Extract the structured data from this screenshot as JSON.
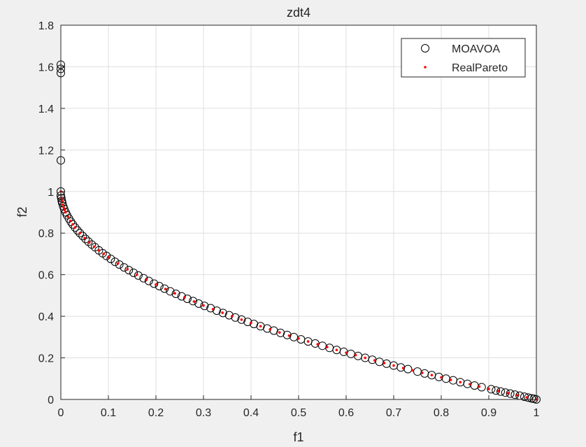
{
  "figure": {
    "background": "#f0f0f0",
    "plot_background": "#ffffff"
  },
  "chart_data": {
    "type": "scatter",
    "title": "zdt4",
    "xlabel": "f1",
    "ylabel": "f2",
    "xlim": [
      0,
      1
    ],
    "ylim": [
      0,
      1.8
    ],
    "xticks": [
      0,
      0.1,
      0.2,
      0.3,
      0.4,
      0.5,
      0.6,
      0.7,
      0.8,
      0.9,
      1
    ],
    "yticks": [
      0,
      0.2,
      0.4,
      0.6,
      0.8,
      1,
      1.2,
      1.4,
      1.6,
      1.8
    ],
    "xtick_labels": [
      "0",
      "0.1",
      "0.2",
      "0.3",
      "0.4",
      "0.5",
      "0.6",
      "0.7",
      "0.8",
      "0.9",
      "1"
    ],
    "ytick_labels": [
      "0",
      "0.2",
      "0.4",
      "0.6",
      "0.8",
      "1",
      "1.2",
      "1.4",
      "1.6",
      "1.8"
    ],
    "grid": true,
    "legend": {
      "placement": "top-right"
    },
    "series": [
      {
        "name": "MOAVOA",
        "marker": "open-circle",
        "color": "#000000",
        "x": [
          0,
          0,
          0,
          0,
          0,
          0,
          0.001,
          0.002,
          0.003,
          0.005,
          0.007,
          0.01,
          0.013,
          0.017,
          0.021,
          0.025,
          0.03,
          0.035,
          0.04,
          0.046,
          0.052,
          0.058,
          0.065,
          0.072,
          0.08,
          0.088,
          0.096,
          0.105,
          0.114,
          0.123,
          0.133,
          0.143,
          0.153,
          0.163,
          0.174,
          0.185,
          0.196,
          0.207,
          0.218,
          0.23,
          0.242,
          0.254,
          0.266,
          0.278,
          0.29,
          0.302,
          0.315,
          0.328,
          0.341,
          0.354,
          0.367,
          0.38,
          0.393,
          0.406,
          0.42,
          0.434,
          0.448,
          0.462,
          0.476,
          0.49,
          0.505,
          0.52,
          0.535,
          0.55,
          0.565,
          0.58,
          0.595,
          0.61,
          0.625,
          0.64,
          0.655,
          0.67,
          0.685,
          0.7,
          0.715,
          0.73,
          0.75,
          0.765,
          0.78,
          0.795,
          0.81,
          0.825,
          0.84,
          0.855,
          0.87,
          0.885,
          0.905,
          0.915,
          0.925,
          0.935,
          0.945,
          0.955,
          0.965,
          0.975,
          0.983,
          0.99,
          0.995,
          1
        ],
        "y": [
          1.61,
          1.59,
          1.57,
          1.15,
          1,
          0.98,
          0.968,
          0.955,
          0.945,
          0.929,
          0.916,
          0.9,
          0.886,
          0.87,
          0.855,
          0.842,
          0.827,
          0.813,
          0.8,
          0.786,
          0.772,
          0.759,
          0.745,
          0.732,
          0.717,
          0.703,
          0.69,
          0.676,
          0.662,
          0.649,
          0.635,
          0.622,
          0.609,
          0.596,
          0.583,
          0.57,
          0.557,
          0.545,
          0.533,
          0.52,
          0.508,
          0.496,
          0.484,
          0.473,
          0.461,
          0.45,
          0.439,
          0.427,
          0.416,
          0.405,
          0.394,
          0.384,
          0.373,
          0.363,
          0.352,
          0.341,
          0.331,
          0.32,
          0.31,
          0.3,
          0.289,
          0.279,
          0.269,
          0.258,
          0.248,
          0.238,
          0.229,
          0.219,
          0.209,
          0.2,
          0.191,
          0.181,
          0.172,
          0.163,
          0.154,
          0.146,
          0.134,
          0.125,
          0.117,
          0.108,
          0.1,
          0.092,
          0.083,
          0.075,
          0.067,
          0.059,
          0.049,
          0.043,
          0.038,
          0.033,
          0.028,
          0.023,
          0.018,
          0.013,
          0.009,
          0.005,
          0.003,
          0
        ]
      },
      {
        "name": "RealPareto",
        "marker": "dot",
        "color": "#ff0000",
        "curve": "f2 = 1 - sqrt(f1)",
        "x": [
          0,
          0.001,
          0.002,
          0.004,
          0.006,
          0.008,
          0.01,
          0.015,
          0.02,
          0.025,
          0.03,
          0.04,
          0.05,
          0.06,
          0.07,
          0.08,
          0.09,
          0.1,
          0.12,
          0.14,
          0.16,
          0.18,
          0.2,
          0.22,
          0.24,
          0.26,
          0.28,
          0.3,
          0.32,
          0.34,
          0.36,
          0.38,
          0.4,
          0.42,
          0.44,
          0.46,
          0.48,
          0.5,
          0.52,
          0.54,
          0.56,
          0.58,
          0.6,
          0.62,
          0.64,
          0.66,
          0.68,
          0.7,
          0.72,
          0.74,
          0.76,
          0.78,
          0.8,
          0.82,
          0.84,
          0.86,
          0.88,
          0.9,
          0.92,
          0.94,
          0.96,
          0.98,
          1
        ],
        "y": [
          1,
          0.968,
          0.955,
          0.937,
          0.923,
          0.911,
          0.9,
          0.878,
          0.859,
          0.842,
          0.827,
          0.8,
          0.776,
          0.755,
          0.735,
          0.717,
          0.7,
          0.684,
          0.654,
          0.626,
          0.6,
          0.576,
          0.553,
          0.531,
          0.51,
          0.49,
          0.471,
          0.452,
          0.434,
          0.417,
          0.4,
          0.384,
          0.368,
          0.352,
          0.337,
          0.322,
          0.307,
          0.293,
          0.279,
          0.265,
          0.252,
          0.238,
          0.225,
          0.213,
          0.2,
          0.188,
          0.175,
          0.163,
          0.151,
          0.14,
          0.128,
          0.117,
          0.106,
          0.094,
          0.083,
          0.073,
          0.062,
          0.051,
          0.041,
          0.03,
          0.02,
          0.01,
          0
        ]
      }
    ]
  }
}
